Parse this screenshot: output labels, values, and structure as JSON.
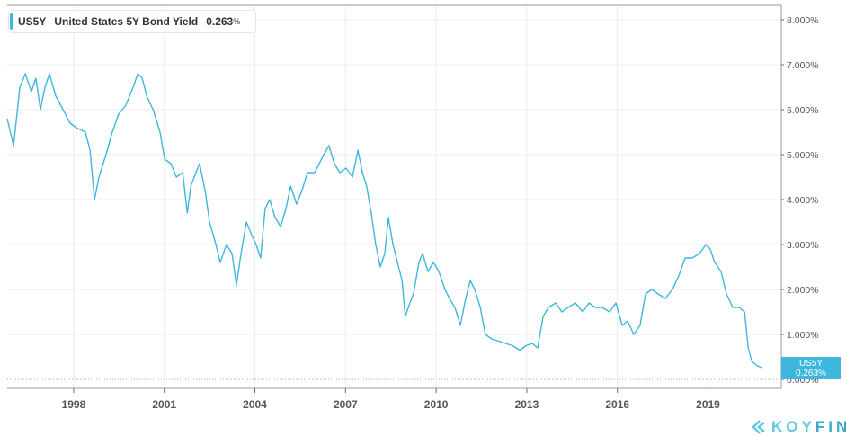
{
  "legend": {
    "ticker": "US5Y",
    "name": "United States 5Y Bond Yield",
    "value": "0.263",
    "unit": "%"
  },
  "last_tag": {
    "ticker": "US5Y",
    "value": "0.263%"
  },
  "logo": {
    "part1": "KOY",
    "part2": "FIN"
  },
  "colors": {
    "line": "#3db8dc",
    "grid": "#ececec",
    "axis": "#999999"
  },
  "chart_data": {
    "type": "line",
    "title": "United States 5Y Bond Yield",
    "xlabel": "",
    "ylabel": "",
    "xlim": [
      1995.8,
      2020.95
    ],
    "ylim": [
      0,
      8.2
    ],
    "x_ticks": [
      {
        "v": 1998,
        "label": "1998"
      },
      {
        "v": 2001,
        "label": "2001"
      },
      {
        "v": 2004,
        "label": "2004"
      },
      {
        "v": 2007,
        "label": "2007"
      },
      {
        "v": 2010,
        "label": "2010"
      },
      {
        "v": 2013,
        "label": "2013"
      },
      {
        "v": 2016,
        "label": "2016"
      },
      {
        "v": 2019,
        "label": "2019"
      }
    ],
    "y_ticks": [
      {
        "v": 0,
        "label": "0.000%"
      },
      {
        "v": 1,
        "label": "1.000%"
      },
      {
        "v": 2,
        "label": "2.000%"
      },
      {
        "v": 3,
        "label": "3.000%"
      },
      {
        "v": 4,
        "label": "4.000%"
      },
      {
        "v": 5,
        "label": "5.000%"
      },
      {
        "v": 6,
        "label": "6.000%"
      },
      {
        "v": 7,
        "label": "7.000%"
      },
      {
        "v": 8,
        "label": "8.000%"
      }
    ],
    "grid": true,
    "legend_position": "top-left",
    "series": [
      {
        "name": "US5Y",
        "x": [
          1995.8,
          1996.01,
          1996.22,
          1996.4,
          1996.6,
          1996.75,
          1996.9,
          1997.05,
          1997.2,
          1997.41,
          1997.65,
          1997.88,
          1998.09,
          1998.39,
          1998.54,
          1998.69,
          1998.84,
          1999.07,
          1999.28,
          1999.49,
          1999.73,
          1999.97,
          2000.12,
          2000.27,
          2000.42,
          2000.63,
          2000.86,
          2001.01,
          2001.22,
          2001.4,
          2001.61,
          2001.76,
          2001.88,
          2002.05,
          2002.17,
          2002.35,
          2002.5,
          2002.71,
          2002.85,
          2003.06,
          2003.24,
          2003.39,
          2003.54,
          2003.72,
          2003.9,
          2004.04,
          2004.19,
          2004.34,
          2004.49,
          2004.67,
          2004.85,
          2005.03,
          2005.18,
          2005.38,
          2005.56,
          2005.74,
          2005.98,
          2006.13,
          2006.28,
          2006.45,
          2006.63,
          2006.81,
          2007.02,
          2007.23,
          2007.41,
          2007.56,
          2007.7,
          2007.85,
          2008.0,
          2008.15,
          2008.3,
          2008.42,
          2008.57,
          2008.72,
          2008.87,
          2008.98,
          2009.13,
          2009.25,
          2009.43,
          2009.55,
          2009.73,
          2009.91,
          2010.09,
          2010.29,
          2010.44,
          2010.62,
          2010.8,
          2010.98,
          2011.13,
          2011.28,
          2011.46,
          2011.63,
          2011.84,
          2012.08,
          2012.29,
          2012.53,
          2012.77,
          2012.98,
          2013.18,
          2013.36,
          2013.54,
          2013.72,
          2013.96,
          2014.16,
          2014.37,
          2014.61,
          2014.85,
          2015.06,
          2015.26,
          2015.5,
          2015.74,
          2015.95,
          2016.16,
          2016.34,
          2016.54,
          2016.75,
          2016.93,
          2017.14,
          2017.35,
          2017.59,
          2017.82,
          2018.03,
          2018.24,
          2018.48,
          2018.72,
          2018.93,
          2019.07,
          2019.22,
          2019.43,
          2019.61,
          2019.82,
          2020.03,
          2020.21,
          2020.33,
          2020.45,
          2020.63,
          2020.8
        ],
        "values": [
          5.8,
          5.2,
          6.5,
          6.8,
          6.4,
          6.7,
          6.0,
          6.5,
          6.8,
          6.3,
          6.0,
          5.7,
          5.6,
          5.5,
          5.1,
          4.0,
          4.5,
          5.0,
          5.5,
          5.9,
          6.1,
          6.5,
          6.8,
          6.7,
          6.3,
          6.0,
          5.5,
          4.9,
          4.8,
          4.5,
          4.6,
          3.7,
          4.3,
          4.6,
          4.8,
          4.2,
          3.5,
          3.0,
          2.6,
          3.0,
          2.8,
          2.1,
          2.8,
          3.5,
          3.2,
          3.0,
          2.7,
          3.8,
          4.0,
          3.6,
          3.4,
          3.8,
          4.3,
          3.9,
          4.2,
          4.6,
          4.6,
          4.8,
          5.0,
          5.2,
          4.8,
          4.6,
          4.7,
          4.5,
          5.1,
          4.6,
          4.3,
          3.7,
          3.0,
          2.5,
          2.8,
          3.6,
          3.0,
          2.6,
          2.2,
          1.4,
          1.7,
          1.9,
          2.6,
          2.8,
          2.4,
          2.6,
          2.4,
          2.0,
          1.8,
          1.6,
          1.2,
          1.8,
          2.2,
          2.0,
          1.6,
          1.0,
          0.9,
          0.85,
          0.8,
          0.75,
          0.65,
          0.75,
          0.8,
          0.7,
          1.4,
          1.6,
          1.7,
          1.5,
          1.6,
          1.7,
          1.5,
          1.7,
          1.6,
          1.6,
          1.5,
          1.7,
          1.2,
          1.3,
          1.0,
          1.2,
          1.9,
          2.0,
          1.9,
          1.8,
          2.0,
          2.3,
          2.7,
          2.7,
          2.8,
          3.0,
          2.9,
          2.6,
          2.4,
          1.9,
          1.6,
          1.6,
          1.5,
          0.7,
          0.4,
          0.3,
          0.263
        ]
      }
    ]
  }
}
